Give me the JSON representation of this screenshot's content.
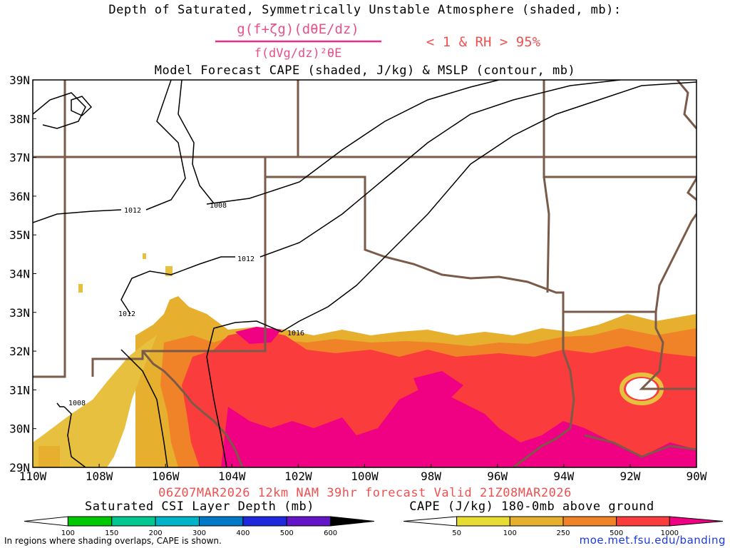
{
  "title": {
    "line1": "Depth of Saturated, Symmetrically Unstable Atmosphere (shaded, mb):",
    "fraction_numerator": "g(f+ζg)(dθE/dz)",
    "fraction_denominator": "f(dVg/dz)²θE",
    "criteria": "< 1 & RH > 95%",
    "line3": "Model Forecast CAPE (shaded, J/kg) & MSLP (contour, mb)"
  },
  "valid_line": "06Z07MAR2026 12km NAM 39hr forecast Valid 21Z08MAR2026",
  "lat_labels": [
    "39N",
    "38N",
    "37N",
    "36N",
    "35N",
    "34N",
    "33N",
    "32N",
    "31N",
    "30N",
    "29N"
  ],
  "lon_labels": [
    "110W",
    "108W",
    "106W",
    "104W",
    "102W",
    "100W",
    "98W",
    "96W",
    "94W",
    "92W",
    "90W"
  ],
  "contour_labels": [
    "1012",
    "1008",
    "1012",
    "1012",
    "1016",
    "1008"
  ],
  "legend_csi": {
    "title": "Saturated CSI Layer Depth (mb)",
    "ticks": [
      "100",
      "150",
      "200",
      "300",
      "400",
      "500",
      "600"
    ],
    "colors": [
      "#ffffff",
      "#00c800",
      "#00c890",
      "#00b4c8",
      "#0078c8",
      "#1e28dc",
      "#6414c8",
      "#000000"
    ]
  },
  "legend_cape": {
    "title": "CAPE (J/kg) 180-0mb above ground",
    "ticks": [
      "50",
      "100",
      "250",
      "500",
      "1000"
    ],
    "colors": [
      "#ffffff",
      "#e6dc32",
      "#e6af2d",
      "#f08228",
      "#fa3c3c",
      "#f00082"
    ]
  },
  "footer_note": "In regions where shading overlaps, CAPE is shown.",
  "credit": "moe.met.fsu.edu/banding"
}
